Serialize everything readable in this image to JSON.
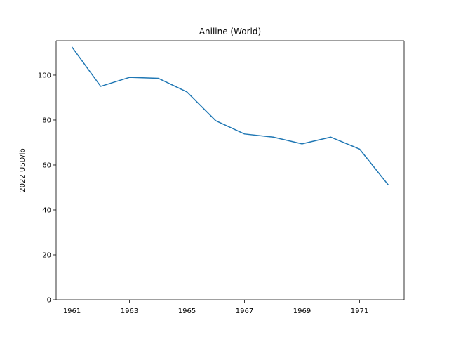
{
  "chart_data": {
    "type": "line",
    "title": "Aniline (World)",
    "xlabel": "",
    "ylabel": "2022 USD/lb",
    "x": [
      1961,
      1962,
      1963,
      1964,
      1965,
      1966,
      1967,
      1968,
      1969,
      1970,
      1971,
      1972
    ],
    "series": [
      {
        "values": [
          112.5,
          95.0,
          99.0,
          98.6,
          92.5,
          79.7,
          73.8,
          72.4,
          69.4,
          72.4,
          67.1,
          51.1
        ],
        "color": "#1f77b4"
      }
    ],
    "xlim": [
      1960.45,
      1972.55
    ],
    "ylim": [
      0,
      115.3
    ],
    "xticks": [
      1961,
      1963,
      1965,
      1967,
      1969,
      1971
    ],
    "yticks": [
      0,
      20,
      40,
      60,
      80,
      100
    ],
    "grid": false,
    "legend": "none"
  }
}
